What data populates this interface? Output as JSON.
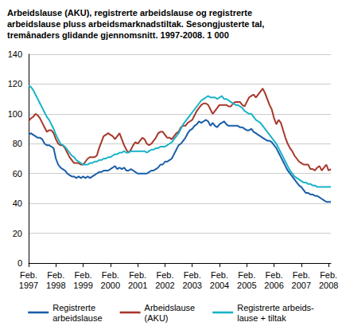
{
  "chart_data": {
    "type": "line",
    "title": "Arbeidslause (AKU), registrerte arbeidslause og registrerte\narbeidslause pluss arbeidsmarknadstiltak. Sesongjusterte tal,\ntremånaders glidande gjennomsnitt. 1997-2008. 1 000",
    "categories": [
      "Feb.\n1997",
      null,
      null,
      null,
      null,
      null,
      null,
      null,
      null,
      null,
      null,
      null,
      "Feb.\n1998",
      null,
      null,
      null,
      null,
      null,
      null,
      null,
      null,
      null,
      null,
      null,
      "Feb.\n1999",
      null,
      null,
      null,
      null,
      null,
      null,
      null,
      null,
      null,
      null,
      null,
      "Feb.\n2000",
      null,
      null,
      null,
      null,
      null,
      null,
      null,
      null,
      null,
      null,
      null,
      "Feb.\n2001",
      null,
      null,
      null,
      null,
      null,
      null,
      null,
      null,
      null,
      null,
      null,
      "Feb.\n2002",
      null,
      null,
      null,
      null,
      null,
      null,
      null,
      null,
      null,
      null,
      null,
      "Feb.\n2003",
      null,
      null,
      null,
      null,
      null,
      null,
      null,
      null,
      null,
      null,
      null,
      "Feb.\n2004",
      null,
      null,
      null,
      null,
      null,
      null,
      null,
      null,
      null,
      null,
      null,
      "Feb.\n2005",
      null,
      null,
      null,
      null,
      null,
      null,
      null,
      null,
      null,
      null,
      null,
      "Feb.\n2006",
      null,
      null,
      null,
      null,
      null,
      null,
      null,
      null,
      null,
      null,
      null,
      "Feb.\n2007",
      null,
      null,
      null,
      null,
      null,
      null,
      null,
      null,
      null,
      null,
      null,
      "Feb.\n2008",
      null
    ],
    "series": [
      {
        "name": "Registrerte\narbeidslause",
        "color": "#1a5ea8",
        "values": [
          86,
          87,
          86,
          85,
          84,
          84,
          83,
          80,
          79,
          79,
          78,
          77,
          70,
          66,
          64,
          63,
          62,
          60,
          59,
          58,
          58,
          57,
          58,
          57,
          58,
          57,
          58,
          57,
          58,
          59,
          60,
          61,
          61,
          62,
          62,
          62,
          63,
          64,
          65,
          63,
          64,
          63,
          64,
          62,
          62,
          63,
          62,
          61,
          60,
          60,
          60,
          60,
          60,
          61,
          62,
          62,
          63,
          64,
          66,
          66,
          68,
          68,
          69,
          70,
          73,
          76,
          79,
          80,
          82,
          84,
          87,
          89,
          90,
          92,
          93,
          95,
          94,
          95,
          96,
          95,
          92,
          94,
          92,
          91,
          93,
          94,
          95,
          93,
          92,
          92,
          92,
          92,
          92,
          91,
          91,
          90,
          89,
          89,
          90,
          88,
          87,
          86,
          85,
          84,
          83,
          82,
          82,
          81,
          79,
          77,
          74,
          71,
          68,
          65,
          62,
          60,
          58,
          56,
          54,
          52,
          51,
          49,
          47,
          47,
          46,
          46,
          45,
          45,
          44,
          43,
          42,
          41,
          41,
          41
        ]
      },
      {
        "name": "Arbeidslause\n(AKU)",
        "color": "#a8372c",
        "values": [
          95,
          97,
          98,
          100,
          99,
          97,
          94,
          91,
          88,
          89,
          89,
          87,
          83,
          80,
          79,
          79,
          77,
          74,
          71,
          69,
          67,
          67,
          67,
          66,
          66,
          68,
          70,
          71,
          71,
          71,
          72,
          77,
          81,
          85,
          86,
          87,
          86,
          85,
          83,
          85,
          87,
          83,
          79,
          76,
          74,
          76,
          79,
          81,
          80,
          82,
          84,
          83,
          80,
          79,
          80,
          82,
          84,
          87,
          88,
          88,
          86,
          84,
          84,
          83,
          85,
          87,
          88,
          91,
          92,
          92,
          94,
          95,
          96,
          99,
          102,
          104,
          106,
          107,
          107,
          106,
          103,
          100,
          102,
          104,
          106,
          106,
          106,
          106,
          105,
          105,
          107,
          108,
          108,
          108,
          106,
          105,
          108,
          111,
          112,
          113,
          111,
          113,
          115,
          117,
          114,
          110,
          106,
          103,
          97,
          93,
          96,
          94,
          89,
          84,
          80,
          77,
          75,
          72,
          70,
          68,
          67,
          66,
          66,
          66,
          63,
          63,
          62,
          64,
          65,
          62,
          64,
          66,
          62,
          63
        ]
      },
      {
        "name": "Registrerte arbeids-\nlause + tiltak",
        "color": "#19b3c7",
        "values": [
          119,
          118,
          116,
          113,
          110,
          107,
          104,
          101,
          98,
          96,
          93,
          90,
          86,
          83,
          80,
          79,
          78,
          76,
          74,
          72,
          71,
          69,
          68,
          67,
          66,
          66,
          66,
          67,
          67,
          68,
          68,
          69,
          69,
          70,
          70,
          71,
          71,
          72,
          73,
          73,
          74,
          74,
          75,
          74,
          74,
          75,
          75,
          75,
          75,
          75,
          75,
          75,
          74,
          75,
          76,
          76,
          77,
          77,
          78,
          78,
          78,
          79,
          80,
          81,
          83,
          85,
          87,
          90,
          93,
          95,
          97,
          99,
          101,
          103,
          105,
          107,
          109,
          110,
          111,
          112,
          111,
          111,
          111,
          110,
          111,
          112,
          110,
          110,
          109,
          108,
          107,
          106,
          106,
          105,
          104,
          102,
          101,
          100,
          100,
          98,
          96,
          95,
          94,
          92,
          90,
          88,
          86,
          84,
          82,
          80,
          77,
          74,
          71,
          68,
          65,
          62,
          60,
          58,
          57,
          56,
          55,
          54,
          54,
          53,
          53,
          52,
          52,
          51,
          51,
          51,
          51,
          51,
          51,
          51
        ]
      }
    ],
    "ylim": [
      0,
      140
    ],
    "yticks": [
      0,
      20,
      40,
      60,
      80,
      100,
      120,
      140
    ],
    "grid": true,
    "legend": "bottom"
  }
}
